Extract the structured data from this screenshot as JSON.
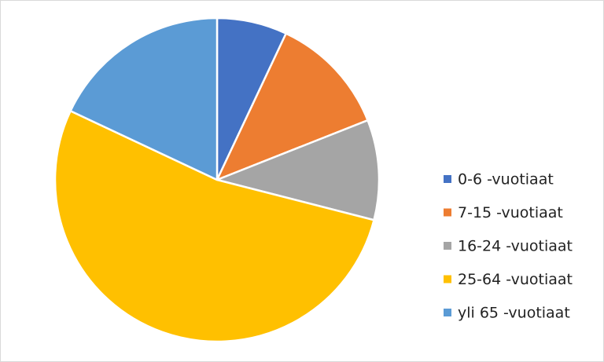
{
  "chart_data": {
    "type": "pie",
    "categories": [
      "0-6 -vuotiaat",
      "7-15 -vuotiaat",
      "16-24 -vuotiaat",
      "25-64 -vuotiaat",
      "yli 65 -vuotiaat"
    ],
    "values": [
      7,
      12,
      10,
      53,
      18
    ],
    "colors": [
      "#4472c4",
      "#ed7d31",
      "#a5a5a5",
      "#ffc000",
      "#5b9bd5"
    ],
    "legend": "right"
  }
}
